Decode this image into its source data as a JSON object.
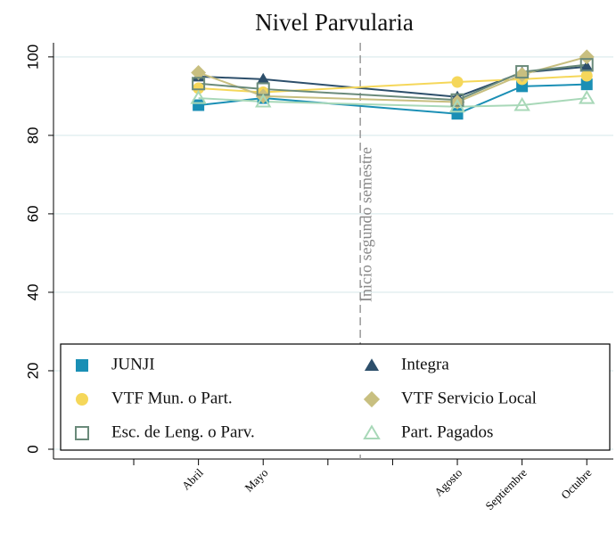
{
  "chart_data": {
    "type": "line",
    "title": "Nivel Parvularia",
    "x": [
      4,
      5,
      8,
      9,
      10
    ],
    "xlim": [
      1.76,
      10.41
    ],
    "xticks": [
      {
        "value": 3,
        "label": null
      },
      {
        "value": 4,
        "label": "Abril"
      },
      {
        "value": 5,
        "label": "Mayo"
      },
      {
        "value": 6,
        "label": null
      },
      {
        "value": 7,
        "label": null
      },
      {
        "value": 8,
        "label": "Agosto"
      },
      {
        "value": 9,
        "label": "Septiembre"
      },
      {
        "value": 10,
        "label": "Octubre"
      }
    ],
    "ylim": [
      -2.5,
      103.6
    ],
    "yticks": [
      0,
      20,
      40,
      60,
      80,
      100
    ],
    "grid": true,
    "vline": {
      "value": 6.5,
      "label": "Inicio segundo semestre"
    },
    "legend": "bottom",
    "series": [
      {
        "name": "JUNJI",
        "color": "#1a8fb5",
        "marker": "square",
        "values": [
          87.7,
          89.5,
          85.5,
          92.5,
          93
        ]
      },
      {
        "name": "Integra",
        "color": "#2d4f6b",
        "marker": "triangle",
        "values": [
          95,
          94.3,
          89.8,
          96,
          97.5
        ]
      },
      {
        "name": "VTF Mun. o Part.",
        "color": "#f5d75a",
        "marker": "circle",
        "values": [
          92,
          91,
          93.6,
          94.3,
          95.2
        ]
      },
      {
        "name": "VTF Servicio Local",
        "color": "#c8bf80",
        "marker": "diamond",
        "values": [
          96,
          90,
          88.5,
          95.5,
          100
        ]
      },
      {
        "name": "Esc. de Leng. o Parv.",
        "color": "#6a8a7a",
        "marker": "hollow-square",
        "values": [
          93.2,
          91.8,
          89,
          96.2,
          98
        ]
      },
      {
        "name": "Part. Pagados",
        "color": "#a8d8b8",
        "marker": "hollow-triangle",
        "values": [
          89.5,
          88.6,
          87.3,
          87.7,
          89.5
        ]
      }
    ]
  }
}
